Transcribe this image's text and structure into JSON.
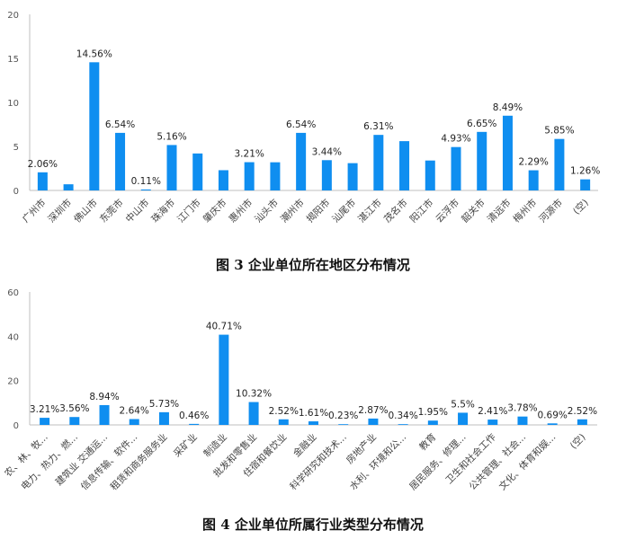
{
  "charts": {
    "chart1_caption": "图 3 企业单位所在地区分布情况",
    "chart2_caption": "图 4 企业单位所属行业类型分布情况"
  },
  "chart_data": [
    {
      "type": "bar",
      "title": "图 3 企业单位所在地区分布情况",
      "categories": [
        "广州市",
        "深圳市",
        "佛山市",
        "东莞市",
        "中山市",
        "珠海市",
        "江门市",
        "肇庆市",
        "惠州市",
        "汕头市",
        "潮州市",
        "揭阳市",
        "汕尾市",
        "湛江市",
        "茂名市",
        "阳江市",
        "云浮市",
        "韶关市",
        "清远市",
        "梅州市",
        "河源市",
        "(空)"
      ],
      "values": [
        2.06,
        0.7,
        14.56,
        6.54,
        0.11,
        5.16,
        4.2,
        2.3,
        3.21,
        3.2,
        6.54,
        3.44,
        3.1,
        6.31,
        5.6,
        3.4,
        4.93,
        6.65,
        8.49,
        2.29,
        5.85,
        1.26
      ],
      "data_labels": [
        "2.06%",
        "",
        "14.56%",
        "6.54%",
        "0.11%",
        "5.16%",
        "",
        "",
        "3.21%",
        "",
        "6.54%",
        "3.44%",
        "",
        "6.31%",
        "",
        "",
        "4.93%",
        "6.65%",
        "8.49%",
        "2.29%",
        "5.85%",
        "1.26%"
      ],
      "yticks": [
        "0",
        "5",
        "10",
        "15",
        "20"
      ],
      "ylim": [
        0,
        20
      ],
      "grid": false,
      "color": "#0f8ef0"
    },
    {
      "type": "bar",
      "title": "图 4 企业单位所属行业类型分布情况",
      "categories": [
        "农、林、牧...",
        "电力、热力、燃...",
        "建筑业 交通运...",
        "信息传输、软件...",
        "租赁和商务服务业",
        "采矿业",
        "制造业",
        "批发和零售业",
        "住宿和餐饮业",
        "金融业",
        "科学研究和技术...",
        "房地产业",
        "水利、环境和公...",
        "教育",
        "居民服务、修理...",
        "卫生和社会工作",
        "公共管理、社会...",
        "文化、体育和娱...",
        "(空)"
      ],
      "values": [
        3.21,
        3.56,
        8.94,
        2.64,
        5.73,
        0.46,
        40.71,
        10.32,
        2.52,
        1.61,
        0.23,
        2.87,
        0.34,
        1.95,
        5.5,
        2.41,
        3.78,
        0.69,
        2.52
      ],
      "data_labels": [
        "3.21%",
        "3.56%",
        "8.94%",
        "2.64%",
        "5.73%",
        "0.46%",
        "40.71%",
        "10.32%",
        "2.52%",
        "1.61%",
        "0.23%",
        "2.87%",
        "0.34%",
        "1.95%",
        "5.5%",
        "2.41%",
        "3.78%",
        "0.69%",
        "2.52%"
      ],
      "yticks": [
        "0",
        "20",
        "40",
        "60"
      ],
      "ylim": [
        0,
        60
      ],
      "grid": false,
      "color": "#0f8ef0"
    }
  ]
}
